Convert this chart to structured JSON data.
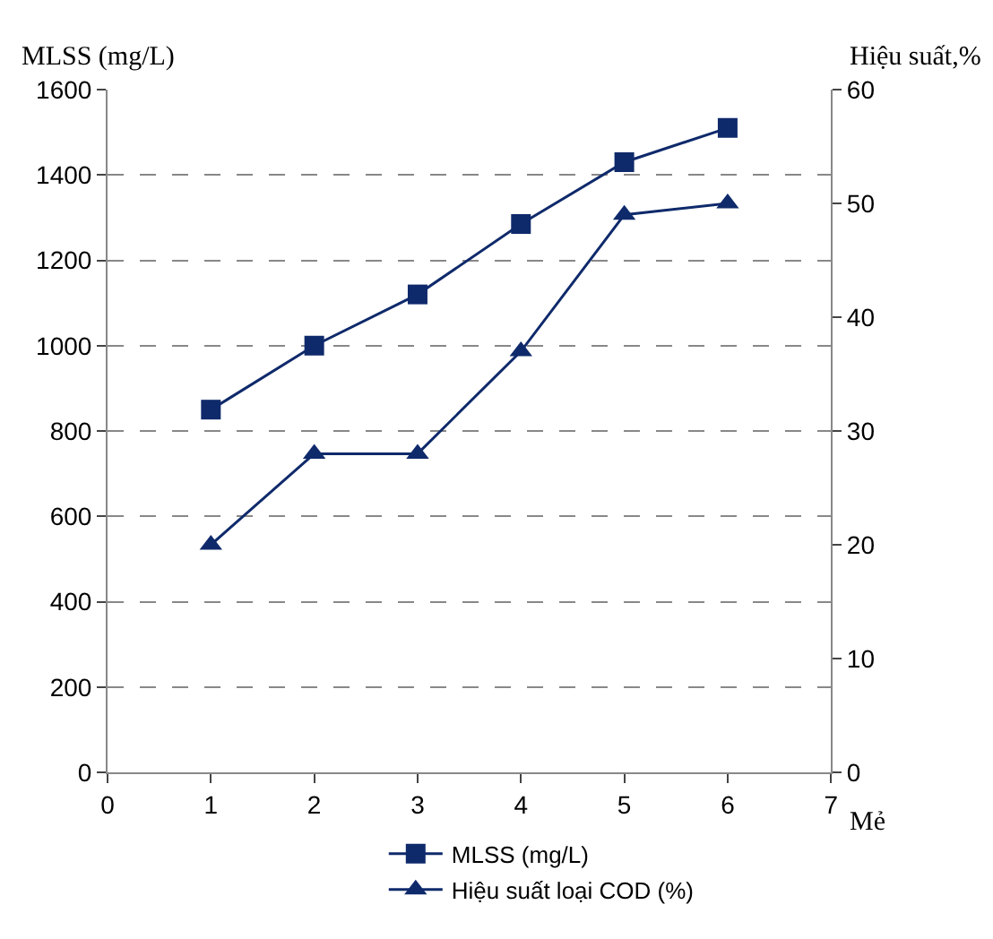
{
  "chart_data": {
    "type": "line",
    "ylabel": "MLSS (mg/L)",
    "y2label": "Hiệu suất,%",
    "xlabel": "Mẻ",
    "x": [
      1,
      2,
      3,
      4,
      5,
      6
    ],
    "series": [
      {
        "name": "MLSS (mg/L)",
        "color": "#0f2a6b",
        "marker": "square",
        "values": [
          850,
          1000,
          1120,
          1285,
          1430,
          1510
        ]
      },
      {
        "name": "Hiệu suất loại COD (%)",
        "color": "#0f2a6b",
        "marker": "triangle",
        "axis": "y2",
        "values": [
          20,
          28,
          28,
          37,
          49,
          50
        ]
      }
    ],
    "xlim": [
      0,
      7
    ],
    "xticks": [
      0,
      1,
      2,
      3,
      4,
      5,
      6,
      7
    ],
    "ylim": [
      0,
      1600
    ],
    "yticks": [
      0,
      200,
      400,
      600,
      800,
      1000,
      1200,
      1400,
      1600
    ],
    "y2lim": [
      0,
      60
    ],
    "y2ticks": [
      0,
      10,
      20,
      30,
      40,
      50,
      60
    ],
    "grid": "y",
    "legend": "bottom"
  }
}
